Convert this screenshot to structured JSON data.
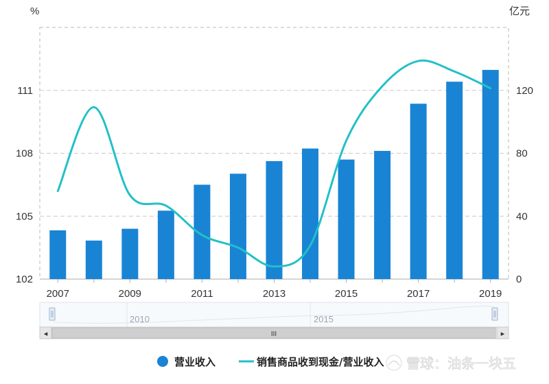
{
  "chart_data": {
    "type": "bar+line",
    "left_axis_unit": "%",
    "right_axis_unit": "亿元",
    "left_ticks": [
      "102",
      "105",
      "108",
      "111"
    ],
    "left_range": [
      102,
      114
    ],
    "right_ticks": [
      "0",
      "40",
      "80",
      "120"
    ],
    "right_range": [
      0,
      160
    ],
    "x_tick_labels": [
      "2007",
      "2009",
      "2011",
      "2013",
      "2015",
      "2017",
      "2019"
    ],
    "categories": [
      "2007",
      "2008",
      "2009",
      "2010",
      "2011",
      "2012",
      "2013",
      "2014",
      "2015",
      "2016",
      "2017",
      "2018",
      "2019"
    ],
    "series": [
      {
        "name": "营业收入",
        "type": "bar",
        "axis": "right",
        "color": "#1a84d4",
        "values": [
          31,
          24.5,
          32,
          43.5,
          60,
          67,
          75,
          83,
          76,
          81.5,
          111.5,
          125.5,
          133
        ]
      },
      {
        "name": "销售商品收到现金/营业收入",
        "type": "line",
        "axis": "left",
        "color": "#22c0c7",
        "values": [
          106.2,
          110.2,
          106.0,
          105.5,
          104.1,
          103.5,
          102.6,
          103.6,
          108.6,
          111.2,
          112.4,
          111.9,
          111.1
        ]
      }
    ],
    "grid": "horizontal dashed",
    "legend_position": "bottom-center"
  },
  "navigator": {
    "labels": [
      "2010",
      "2015"
    ],
    "scroll_grip": "III",
    "left_arrow": "◂",
    "right_arrow": "▸"
  },
  "watermark": {
    "text": "雪球：油条一块五"
  },
  "colors": {
    "bar": "#1a84d4",
    "line": "#22c0c7",
    "grid": "#c8c8c8",
    "axis": "#aaaaaa"
  }
}
